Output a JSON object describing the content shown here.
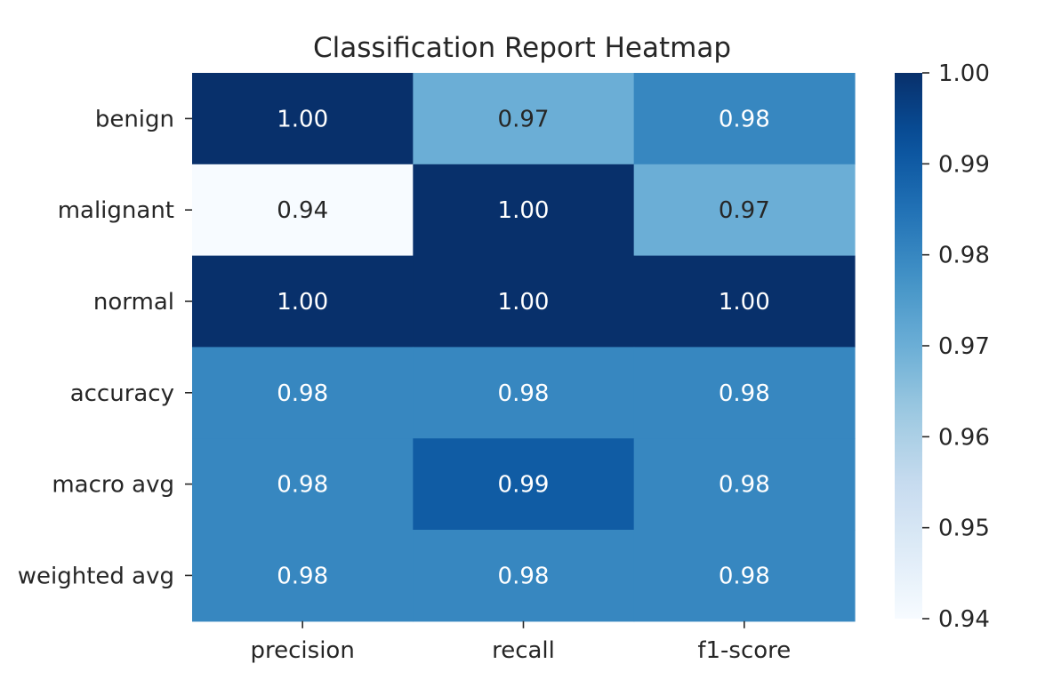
{
  "chart_data": {
    "type": "heatmap",
    "title": "Classification Report Heatmap",
    "xlabel": "",
    "ylabel": "",
    "x_categories": [
      "precision",
      "recall",
      "f1-score"
    ],
    "y_categories": [
      "benign",
      "malignant",
      "normal",
      "accuracy",
      "macro avg",
      "weighted avg"
    ],
    "values": [
      [
        1.0,
        0.97,
        0.98
      ],
      [
        0.94,
        1.0,
        0.97
      ],
      [
        1.0,
        1.0,
        1.0
      ],
      [
        0.98,
        0.98,
        0.98
      ],
      [
        0.98,
        0.99,
        0.98
      ],
      [
        0.98,
        0.98,
        0.98
      ]
    ],
    "cell_labels": [
      [
        "1.00",
        "0.97",
        "0.98"
      ],
      [
        "0.94",
        "1.00",
        "0.97"
      ],
      [
        "1.00",
        "1.00",
        "1.00"
      ],
      [
        "0.98",
        "0.98",
        "0.98"
      ],
      [
        "0.98",
        "0.99",
        "0.98"
      ],
      [
        "0.98",
        "0.98",
        "0.98"
      ]
    ],
    "colormap": "Blues",
    "colorbar": {
      "range": [
        0.94,
        1.0
      ],
      "tick_labels": [
        "1.00",
        "0.99",
        "0.98",
        "0.97",
        "0.96",
        "0.95",
        "0.94"
      ]
    },
    "grid": false,
    "legend": "colorbar-right"
  }
}
